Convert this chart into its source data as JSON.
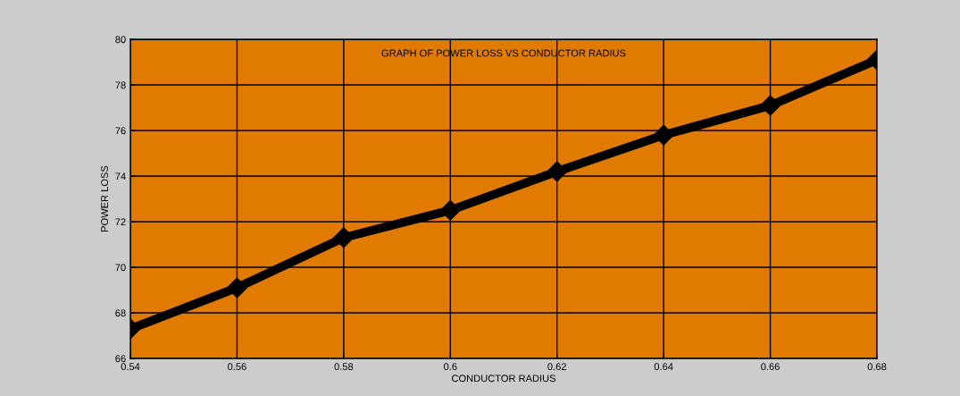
{
  "chart_data": {
    "type": "line",
    "title": "GRAPH OF POWER LOSS VS CONDUCTOR RADIUS",
    "xlabel": "CONDUCTOR RADIUS",
    "ylabel": "POWER LOSS",
    "x": [
      0.54,
      0.56,
      0.58,
      0.6,
      0.62,
      0.64,
      0.66,
      0.68
    ],
    "series": [
      {
        "color": "#000000",
        "values": [
          67.3,
          69.1,
          71.3,
          72.5,
          74.2,
          75.8,
          77.1,
          79.1
        ]
      }
    ],
    "xlim": [
      0.54,
      0.68
    ],
    "xticks": [
      0.54,
      0.56,
      0.58,
      0.6,
      0.62,
      0.64,
      0.66,
      0.68
    ],
    "ylim": [
      66,
      80
    ],
    "yticks": [
      66,
      68,
      70,
      72,
      74,
      76,
      78,
      80
    ],
    "grid": true,
    "marker": "diamond",
    "line_style": "solid"
  }
}
